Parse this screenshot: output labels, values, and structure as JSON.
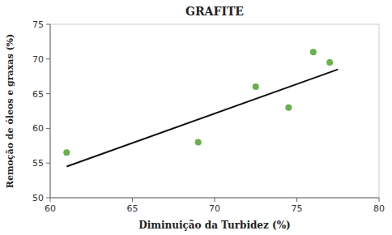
{
  "chart_data": {
    "type": "scatter",
    "title": "GRAFITE",
    "xlabel": "Diminuição da Turbidez (%)",
    "ylabel": "Remoção de óleos e graxas (%)",
    "series": [
      {
        "type": "scatter",
        "color": "#6ab04c",
        "x": [
          61.0,
          69.0,
          72.5,
          74.5,
          76.0,
          77.0
        ],
        "values": [
          56.5,
          58.0,
          66.0,
          63.0,
          71.0,
          69.5
        ]
      },
      {
        "type": "line",
        "color": "#111111",
        "x": [
          61.0,
          77.5
        ],
        "values": [
          54.5,
          68.5
        ]
      }
    ],
    "xlim": [
      60,
      80
    ],
    "ylim": [
      50,
      75
    ],
    "xticks": [
      60,
      65,
      70,
      75,
      80
    ],
    "yticks": [
      50,
      55,
      60,
      65,
      70,
      75
    ],
    "grid": false
  }
}
